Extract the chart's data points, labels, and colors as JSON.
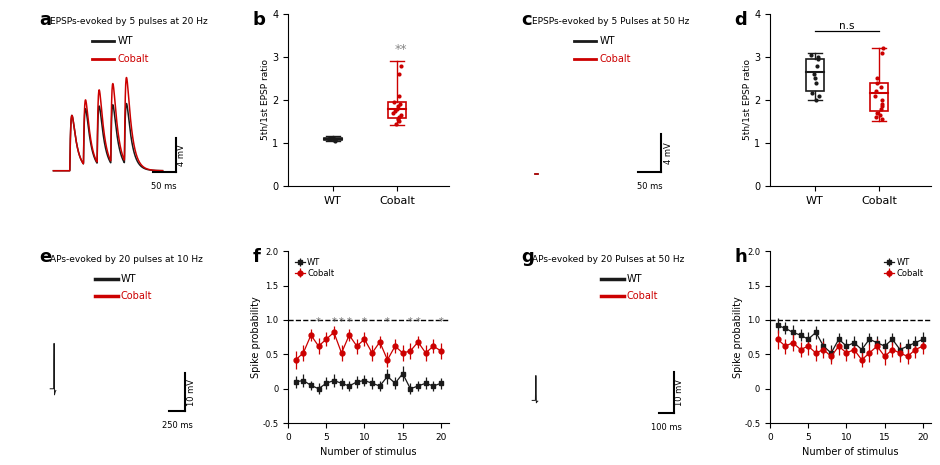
{
  "panel_labels": [
    "a",
    "b",
    "c",
    "d",
    "e",
    "f",
    "g",
    "h"
  ],
  "panel_a": {
    "title": "EPSPs-evoked by 5 pulses at 20 Hz",
    "scalebar_v": "4 mV",
    "scalebar_t": "50 ms"
  },
  "panel_b": {
    "ylabel": "5th/1st EPSP ratio",
    "categories": [
      "WT",
      "Cobalt"
    ],
    "wt_dots": [
      1.05,
      1.08,
      1.1,
      1.07,
      1.12,
      1.09,
      1.11,
      1.06,
      1.1,
      1.08
    ],
    "cobalt_dots": [
      1.5,
      1.65,
      1.7,
      1.8,
      1.9,
      1.55,
      1.6,
      1.75,
      2.8,
      2.6,
      1.85,
      1.95,
      1.45,
      2.1
    ],
    "wt_box": {
      "q1": 1.07,
      "median": 1.1,
      "q3": 1.12,
      "whisker_low": 1.05,
      "whisker_high": 1.15
    },
    "cobalt_box": {
      "q1": 1.58,
      "median": 1.78,
      "q3": 1.95,
      "whisker_low": 1.42,
      "whisker_high": 2.9
    },
    "significance": "**",
    "ylim": [
      0,
      4
    ]
  },
  "panel_c": {
    "title": "EPSPs-evoked by 5 Pulses at 50 Hz",
    "scalebar_v": "4 mV",
    "scalebar_t": "50 ms"
  },
  "panel_d": {
    "ylabel": "5th/1st EPSP ratio",
    "categories": [
      "WT",
      "Cobalt"
    ],
    "wt_dots": [
      2.0,
      2.1,
      2.95,
      3.0,
      3.05,
      2.8,
      2.6,
      2.5,
      2.4,
      2.15
    ],
    "cobalt_dots": [
      1.7,
      1.8,
      1.85,
      1.9,
      2.0,
      2.1,
      2.2,
      2.3,
      2.4,
      2.5,
      3.1,
      3.2,
      1.65,
      1.6,
      1.55
    ],
    "wt_box": {
      "q1": 2.2,
      "median": 2.65,
      "q3": 2.95,
      "whisker_low": 2.0,
      "whisker_high": 3.1
    },
    "cobalt_box": {
      "q1": 1.75,
      "median": 2.15,
      "q3": 2.4,
      "whisker_low": 1.5,
      "whisker_high": 3.2
    },
    "significance": "n.s",
    "ylim": [
      0,
      4
    ]
  },
  "panel_e": {
    "title": "APs-evoked by 20 pulses at 10 Hz",
    "scalebar_v": "10 mV",
    "scalebar_t": "250 ms"
  },
  "panel_f": {
    "ylabel": "Spike probability",
    "xlabel": "Number of stimulus",
    "wt_y": [
      0.1,
      0.12,
      0.05,
      0.0,
      0.08,
      0.12,
      0.08,
      0.04,
      0.1,
      0.12,
      0.08,
      0.04,
      0.18,
      0.08,
      0.22,
      0.0,
      0.04,
      0.08,
      0.04,
      0.08
    ],
    "cobalt_y": [
      0.42,
      0.52,
      0.78,
      0.62,
      0.72,
      0.82,
      0.52,
      0.78,
      0.62,
      0.72,
      0.52,
      0.68,
      0.42,
      0.62,
      0.52,
      0.55,
      0.68,
      0.52,
      0.62,
      0.55
    ],
    "wt_err": [
      0.09,
      0.09,
      0.07,
      0.08,
      0.09,
      0.09,
      0.08,
      0.07,
      0.09,
      0.08,
      0.09,
      0.07,
      0.11,
      0.09,
      0.11,
      0.08,
      0.07,
      0.09,
      0.07,
      0.08
    ],
    "cobalt_err": [
      0.13,
      0.11,
      0.09,
      0.12,
      0.1,
      0.09,
      0.12,
      0.09,
      0.11,
      0.1,
      0.12,
      0.09,
      0.11,
      0.1,
      0.12,
      0.11,
      0.09,
      0.12,
      0.1,
      0.11
    ],
    "significance_positions": [
      4,
      6,
      7,
      8,
      10,
      13,
      16,
      17,
      20
    ],
    "ylim": [
      -0.5,
      2.0
    ],
    "yticks": [
      -0.5,
      0.0,
      0.5,
      1.0,
      1.5,
      2.0
    ]
  },
  "panel_g": {
    "title": "APs-evoked by 20 Pulses at 50 Hz",
    "scalebar_v": "10 mV",
    "scalebar_t": "100 ms"
  },
  "panel_h": {
    "ylabel": "Spike probability",
    "xlabel": "Number of stimulus",
    "wt_y": [
      0.92,
      0.88,
      0.82,
      0.78,
      0.72,
      0.82,
      0.62,
      0.52,
      0.72,
      0.62,
      0.67,
      0.57,
      0.72,
      0.67,
      0.62,
      0.72,
      0.57,
      0.62,
      0.67,
      0.72
    ],
    "cobalt_y": [
      0.72,
      0.62,
      0.67,
      0.57,
      0.62,
      0.52,
      0.57,
      0.47,
      0.62,
      0.52,
      0.57,
      0.42,
      0.52,
      0.62,
      0.47,
      0.57,
      0.52,
      0.47,
      0.57,
      0.62
    ],
    "wt_err": [
      0.11,
      0.09,
      0.1,
      0.09,
      0.11,
      0.09,
      0.12,
      0.11,
      0.09,
      0.11,
      0.1,
      0.11,
      0.09,
      0.1,
      0.11,
      0.09,
      0.11,
      0.1,
      0.09,
      0.11
    ],
    "cobalt_err": [
      0.14,
      0.11,
      0.12,
      0.11,
      0.13,
      0.11,
      0.12,
      0.11,
      0.13,
      0.11,
      0.12,
      0.11,
      0.13,
      0.11,
      0.12,
      0.11,
      0.13,
      0.11,
      0.12,
      0.11
    ],
    "ylim": [
      -0.5,
      2.0
    ],
    "yticks": [
      -0.5,
      0.0,
      0.5,
      1.0,
      1.5,
      2.0
    ]
  },
  "colors": {
    "wt": "#1a1a1a",
    "cobalt": "#cc0000",
    "background": "#ffffff"
  }
}
